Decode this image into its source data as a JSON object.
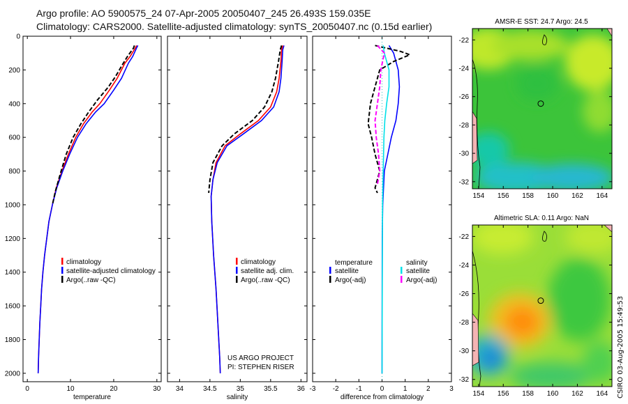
{
  "titles": {
    "line1": "Argo profile: AO 5900575_24 07-Apr-2005 20050407_245 26.493S 159.035E",
    "line2": "Climatology: CARS2000. Satellite-adjusted climatology: synTS_20050407.nc (0.15d earlier)"
  },
  "credit": {
    "project": "US ARGO PROJECT",
    "pi": "PI: STEPHEN RISER"
  },
  "stamp": "CSIRO 03-Aug-2005 15:49:53",
  "colors": {
    "climatology": "#ff0000",
    "satellite": "#0000ff",
    "argo": "#000000",
    "salinity": "#00e0e8",
    "salinity_argo": "#ff00ff",
    "coast": "#000000"
  },
  "chart_data": [
    {
      "type": "line",
      "id": "temperature",
      "xlabel": "temperature",
      "xlim": [
        -1,
        31
      ],
      "ylim": [
        2050,
        0
      ],
      "xticks": [
        0,
        10,
        20,
        30
      ],
      "yticks": [
        0,
        200,
        400,
        600,
        800,
        1000,
        1200,
        1400,
        1600,
        1800,
        2000
      ],
      "legend": [
        "climatology",
        "satellite-adjusted climatology",
        "Argo(..raw -QC)"
      ],
      "series": [
        {
          "name": "climatology",
          "color": "#ff0000",
          "style": "solid",
          "points": [
            [
              25.3,
              55
            ],
            [
              25.0,
              70
            ],
            [
              23.8,
              120
            ],
            [
              22.6,
              160
            ],
            [
              20.8,
              250
            ],
            [
              19.0,
              320
            ],
            [
              16.8,
              400
            ],
            [
              15.0,
              450
            ],
            [
              13.0,
              520
            ],
            [
              11.2,
              600
            ],
            [
              9.5,
              700
            ],
            [
              8.0,
              800
            ],
            [
              6.7,
              900
            ],
            [
              5.8,
              1000
            ],
            [
              5.0,
              1100
            ],
            [
              4.5,
              1200
            ],
            [
              4.0,
              1300
            ],
            [
              3.6,
              1400
            ],
            [
              3.3,
              1500
            ],
            [
              3.1,
              1600
            ],
            [
              2.9,
              1700
            ],
            [
              2.75,
              1800
            ],
            [
              2.6,
              1900
            ],
            [
              2.5,
              2000
            ]
          ]
        },
        {
          "name": "satellite-adjusted climatology",
          "color": "#0000ff",
          "style": "solid",
          "points": [
            [
              25.6,
              55
            ],
            [
              25.3,
              70
            ],
            [
              24.4,
              120
            ],
            [
              23.4,
              160
            ],
            [
              21.8,
              250
            ],
            [
              20.0,
              320
            ],
            [
              17.8,
              400
            ],
            [
              15.8,
              450
            ],
            [
              13.6,
              520
            ],
            [
              11.6,
              600
            ],
            [
              9.8,
              700
            ],
            [
              8.2,
              800
            ],
            [
              6.8,
              900
            ],
            [
              5.8,
              1000
            ],
            [
              5.0,
              1100
            ],
            [
              4.5,
              1200
            ],
            [
              4.0,
              1300
            ],
            [
              3.6,
              1400
            ],
            [
              3.3,
              1500
            ],
            [
              3.1,
              1600
            ],
            [
              2.9,
              1700
            ],
            [
              2.75,
              1800
            ],
            [
              2.6,
              1900
            ],
            [
              2.5,
              2000
            ]
          ]
        },
        {
          "name": "Argo(..raw -QC)",
          "color": "#000000",
          "style": "dashed",
          "points": [
            [
              24.8,
              55
            ],
            [
              24.6,
              70
            ],
            [
              23.2,
              120
            ],
            [
              22.0,
              170
            ],
            [
              20.4,
              240
            ],
            [
              18.8,
              300
            ],
            [
              16.2,
              380
            ],
            [
              14.2,
              450
            ],
            [
              12.4,
              520
            ],
            [
              10.6,
              600
            ],
            [
              9.0,
              700
            ],
            [
              7.6,
              820
            ],
            [
              6.5,
              920
            ],
            [
              5.8,
              1000
            ]
          ]
        }
      ]
    },
    {
      "type": "line",
      "id": "salinity",
      "xlabel": "salinity",
      "xlim": [
        33.8,
        36.1
      ],
      "ylim": [
        2050,
        0
      ],
      "xticks": [
        34,
        34.5,
        35,
        35.5,
        36
      ],
      "xticklabels": [
        "34",
        "34.5",
        "35",
        "35.5",
        "36"
      ],
      "legend": [
        "climatology",
        "satellite adj. clim.",
        "Argo(..raw -QC)"
      ],
      "series": [
        {
          "name": "climatology",
          "color": "#ff0000",
          "style": "solid",
          "points": [
            [
              35.7,
              55
            ],
            [
              35.68,
              80
            ],
            [
              35.67,
              150
            ],
            [
              35.64,
              250
            ],
            [
              35.6,
              330
            ],
            [
              35.5,
              420
            ],
            [
              35.3,
              500
            ],
            [
              35.0,
              580
            ],
            [
              34.75,
              650
            ],
            [
              34.6,
              750
            ],
            [
              34.55,
              850
            ],
            [
              34.52,
              950
            ],
            [
              34.53,
              1100
            ],
            [
              34.56,
              1300
            ],
            [
              34.6,
              1500
            ],
            [
              34.63,
              1700
            ],
            [
              34.66,
              1900
            ],
            [
              34.67,
              2000
            ]
          ]
        },
        {
          "name": "satellite adj. clim.",
          "color": "#0000ff",
          "style": "solid",
          "points": [
            [
              35.72,
              55
            ],
            [
              35.7,
              80
            ],
            [
              35.69,
              150
            ],
            [
              35.67,
              250
            ],
            [
              35.64,
              330
            ],
            [
              35.55,
              420
            ],
            [
              35.35,
              500
            ],
            [
              35.05,
              580
            ],
            [
              34.78,
              650
            ],
            [
              34.62,
              750
            ],
            [
              34.55,
              850
            ],
            [
              34.52,
              950
            ],
            [
              34.53,
              1100
            ],
            [
              34.56,
              1300
            ],
            [
              34.6,
              1500
            ],
            [
              34.63,
              1700
            ],
            [
              34.66,
              1900
            ],
            [
              34.67,
              2000
            ]
          ]
        },
        {
          "name": "Argo(..raw -QC)",
          "color": "#000000",
          "style": "dashed",
          "points": [
            [
              35.68,
              55
            ],
            [
              35.66,
              80
            ],
            [
              35.63,
              150
            ],
            [
              35.58,
              250
            ],
            [
              35.52,
              330
            ],
            [
              35.4,
              420
            ],
            [
              35.2,
              500
            ],
            [
              34.9,
              580
            ],
            [
              34.7,
              650
            ],
            [
              34.55,
              750
            ],
            [
              34.5,
              850
            ],
            [
              34.48,
              930
            ]
          ]
        }
      ]
    },
    {
      "type": "line",
      "id": "difference",
      "xlabel": "difference from climatology",
      "xlim": [
        -3,
        3
      ],
      "ylim": [
        2050,
        0
      ],
      "xticks": [
        -3,
        -2,
        -1,
        0,
        1,
        2,
        3
      ],
      "legend_left": [
        "temperature",
        "satellite",
        "Argo(-adj)"
      ],
      "legend_right": [
        "salinity",
        "satellite",
        "Argo(-adj)"
      ],
      "series": [
        {
          "name": "temperature satellite",
          "color": "#0000ff",
          "style": "solid",
          "points": [
            [
              0.3,
              55
            ],
            [
              0.5,
              100
            ],
            [
              0.7,
              200
            ],
            [
              0.75,
              300
            ],
            [
              0.7,
              400
            ],
            [
              0.6,
              500
            ],
            [
              0.4,
              600
            ],
            [
              0.25,
              700
            ],
            [
              0.1,
              800
            ],
            [
              0.03,
              1000
            ],
            [
              0.01,
              1200
            ],
            [
              0.0,
              2000
            ]
          ]
        },
        {
          "name": "temperature Argo(-adj)",
          "color": "#000000",
          "style": "dashed",
          "points": [
            [
              -0.3,
              55
            ],
            [
              0.8,
              90
            ],
            [
              1.2,
              110
            ],
            [
              0.5,
              150
            ],
            [
              -0.1,
              200
            ],
            [
              -0.3,
              300
            ],
            [
              -0.5,
              400
            ],
            [
              -0.6,
              520
            ],
            [
              -0.45,
              600
            ],
            [
              -0.3,
              700
            ],
            [
              -0.1,
              800
            ],
            [
              -0.3,
              900
            ],
            [
              -0.2,
              930
            ]
          ]
        },
        {
          "name": "salinity satellite",
          "color": "#00e0e8",
          "style": "solid",
          "points": [
            [
              0.05,
              55
            ],
            [
              0.1,
              100
            ],
            [
              0.3,
              200
            ],
            [
              0.3,
              300
            ],
            [
              0.2,
              400
            ],
            [
              0.12,
              500
            ],
            [
              0.08,
              600
            ],
            [
              0.05,
              800
            ],
            [
              0.02,
              1000
            ],
            [
              0.0,
              2000
            ]
          ]
        },
        {
          "name": "salinity Argo(-adj)",
          "color": "#ff00ff",
          "style": "dashed",
          "points": [
            [
              -0.2,
              55
            ],
            [
              0.1,
              100
            ],
            [
              -0.05,
              200
            ],
            [
              -0.1,
              300
            ],
            [
              -0.2,
              400
            ],
            [
              -0.3,
              500
            ],
            [
              -0.25,
              600
            ],
            [
              -0.15,
              700
            ],
            [
              -0.1,
              800
            ],
            [
              -0.2,
              880
            ]
          ]
        }
      ]
    },
    {
      "type": "heatmap",
      "id": "sst-map",
      "title": "AMSR-E SST: 24.7 Argo: 24.5",
      "xlim": [
        153.5,
        164.8
      ],
      "ylim": [
        -32.5,
        -21.2
      ],
      "xticks": [
        154,
        156,
        158,
        160,
        162,
        164
      ],
      "yticks": [
        -22,
        -24,
        -26,
        -28,
        -30,
        -32
      ],
      "float_position": [
        159.035,
        -26.493
      ]
    },
    {
      "type": "heatmap",
      "id": "sla-map",
      "title": "Altimetric SLA: 0.11 Argo: NaN",
      "xlim": [
        153.5,
        164.8
      ],
      "ylim": [
        -32.5,
        -21.2
      ],
      "xticks": [
        154,
        156,
        158,
        160,
        162,
        164
      ],
      "yticks": [
        -22,
        -24,
        -26,
        -28,
        -30,
        -32
      ],
      "float_position": [
        159.035,
        -26.493
      ]
    }
  ]
}
